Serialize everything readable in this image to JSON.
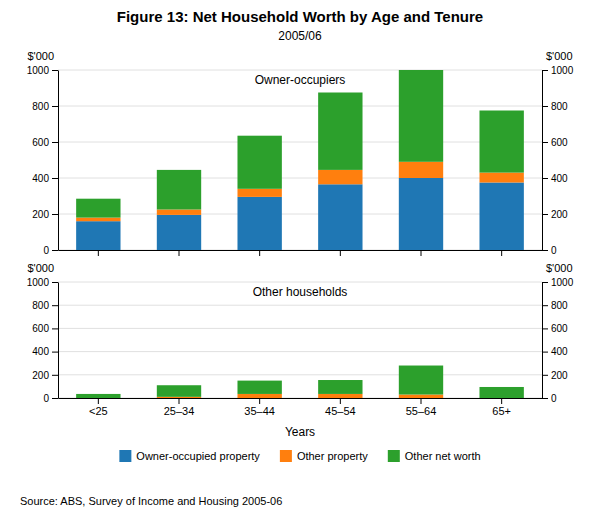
{
  "chart_data": [
    {
      "type": "bar",
      "title": "Figure 13: Net Household Worth by Age and Tenure",
      "subtitle": "2005/06",
      "annotations": [
        "Owner-occupiers"
      ],
      "categories": [
        "<25",
        "25–34",
        "35–44",
        "45–54",
        "55–64",
        "65+"
      ],
      "series": [
        {
          "name": "Owner-occupied property",
          "values": [
            160,
            195,
            295,
            365,
            400,
            375
          ]
        },
        {
          "name": "Other property",
          "values": [
            20,
            30,
            45,
            80,
            90,
            55
          ]
        },
        {
          "name": "Other net worth",
          "values": [
            105,
            220,
            295,
            430,
            510,
            345
          ]
        }
      ],
      "ylabel": "$'000",
      "ylim": [
        0,
        1000
      ],
      "yticks": [
        0,
        200,
        400,
        600,
        800,
        1000
      ],
      "stacked": true,
      "grid": true,
      "legend": "bottom",
      "tick_labels": "y"
    },
    {
      "type": "bar",
      "annotations": [
        "Other households",
        "Source:  ABS, Survey of Income and Housing 2005-06"
      ],
      "categories": [
        "<25",
        "25–34",
        "35–44",
        "45–54",
        "55–64",
        "65+"
      ],
      "series": [
        {
          "name": "Other property",
          "values": [
            0,
            10,
            35,
            35,
            30,
            0
          ]
        },
        {
          "name": "Other net worth",
          "values": [
            35,
            100,
            115,
            120,
            250,
            95
          ]
        }
      ],
      "ylabel": "$'000",
      "xlabel": "Years",
      "ylim": [
        0,
        1000
      ],
      "yticks": [
        0,
        200,
        400,
        600,
        800,
        1000
      ],
      "stacked": true,
      "grid": true
    }
  ]
}
